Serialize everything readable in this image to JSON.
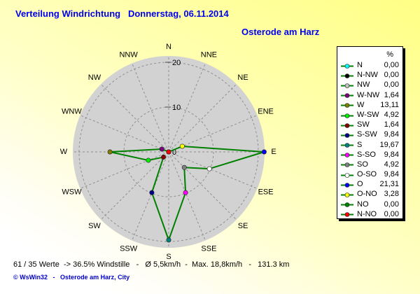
{
  "header": {
    "title": "Verteilung Windrichtung   Donnerstag, 06.11.2014",
    "station": "Osterode am Harz"
  },
  "legend": {
    "header_label": "%"
  },
  "status_bar": {
    "text": "61 / 35 Werte  -> 36.5% Windstille   -   Ø 5,5km/h  -  Max. 18,8km/h   -   131.3 km"
  },
  "footer": {
    "copyright": "© WsWin32   -   Osterode am Harz, City"
  },
  "colors": {
    "title_text": "#0000ee",
    "disc_fill": "#d2d2d2",
    "grid_stroke": "#8f8f8f",
    "tick_stroke": "#444444",
    "line_color": "#008000",
    "label_text": "#000000"
  },
  "chart_data": {
    "type": "line",
    "polar": true,
    "subtype": "wind-rose-radar",
    "title": "Verteilung Windrichtung   Donnerstag, 06.11.2014",
    "station": "Osterode am Harz",
    "units": "%",
    "legend_position": "right",
    "grid": "dashed",
    "radial_ticks": [
      0,
      10,
      20
    ],
    "radial_tick_labels": [
      "0",
      "10",
      "20"
    ],
    "radial_max": 21.31,
    "compass_labels": [
      "N",
      "NNE",
      "NE",
      "ENE",
      "E",
      "ESE",
      "SE",
      "SSE",
      "S",
      "SSW",
      "SW",
      "WSW",
      "W",
      "WNW",
      "NW",
      "NNW"
    ],
    "line_color": "#008000",
    "directions": [
      {
        "label": "N",
        "angle_deg": 0.0,
        "value": 0.0,
        "display": "0,00",
        "color": "#00ffff"
      },
      {
        "label": "N-NW",
        "angle_deg": 337.5,
        "value": 0.0,
        "display": "0,00",
        "color": "#000000"
      },
      {
        "label": "NW",
        "angle_deg": 315.0,
        "value": 0.0,
        "display": "0,00",
        "color": "#c0c0c0"
      },
      {
        "label": "W-NW",
        "angle_deg": 292.5,
        "value": 1.64,
        "display": "1,64",
        "color": "#800080"
      },
      {
        "label": "W",
        "angle_deg": 270.0,
        "value": 13.11,
        "display": "13,11",
        "color": "#808000"
      },
      {
        "label": "W-SW",
        "angle_deg": 247.5,
        "value": 4.92,
        "display": "4,92",
        "color": "#00ee00"
      },
      {
        "label": "SW",
        "angle_deg": 225.0,
        "value": 1.64,
        "display": "1,64",
        "color": "#8b0000"
      },
      {
        "label": "S-SW",
        "angle_deg": 202.5,
        "value": 9.84,
        "display": "9,84",
        "color": "#000090"
      },
      {
        "label": "S",
        "angle_deg": 180.0,
        "value": 19.67,
        "display": "19,67",
        "color": "#008080"
      },
      {
        "label": "S-SO",
        "angle_deg": 157.5,
        "value": 9.84,
        "display": "9,84",
        "color": "#ff00ff"
      },
      {
        "label": "SO",
        "angle_deg": 135.0,
        "value": 4.92,
        "display": "4,92",
        "color": "#808080"
      },
      {
        "label": "O-SO",
        "angle_deg": 112.5,
        "value": 9.84,
        "display": "9,84",
        "color": "#ffffff"
      },
      {
        "label": "O",
        "angle_deg": 90.0,
        "value": 21.31,
        "display": "21,31",
        "color": "#0000ff"
      },
      {
        "label": "O-NO",
        "angle_deg": 67.5,
        "value": 3.28,
        "display": "3,28",
        "color": "#ffff00"
      },
      {
        "label": "NO",
        "angle_deg": 45.0,
        "value": 0.0,
        "display": "0,00",
        "color": "#008000"
      },
      {
        "label": "N-NO",
        "angle_deg": 22.5,
        "value": 0.0,
        "display": "0,00",
        "color": "#ff0000"
      }
    ]
  }
}
